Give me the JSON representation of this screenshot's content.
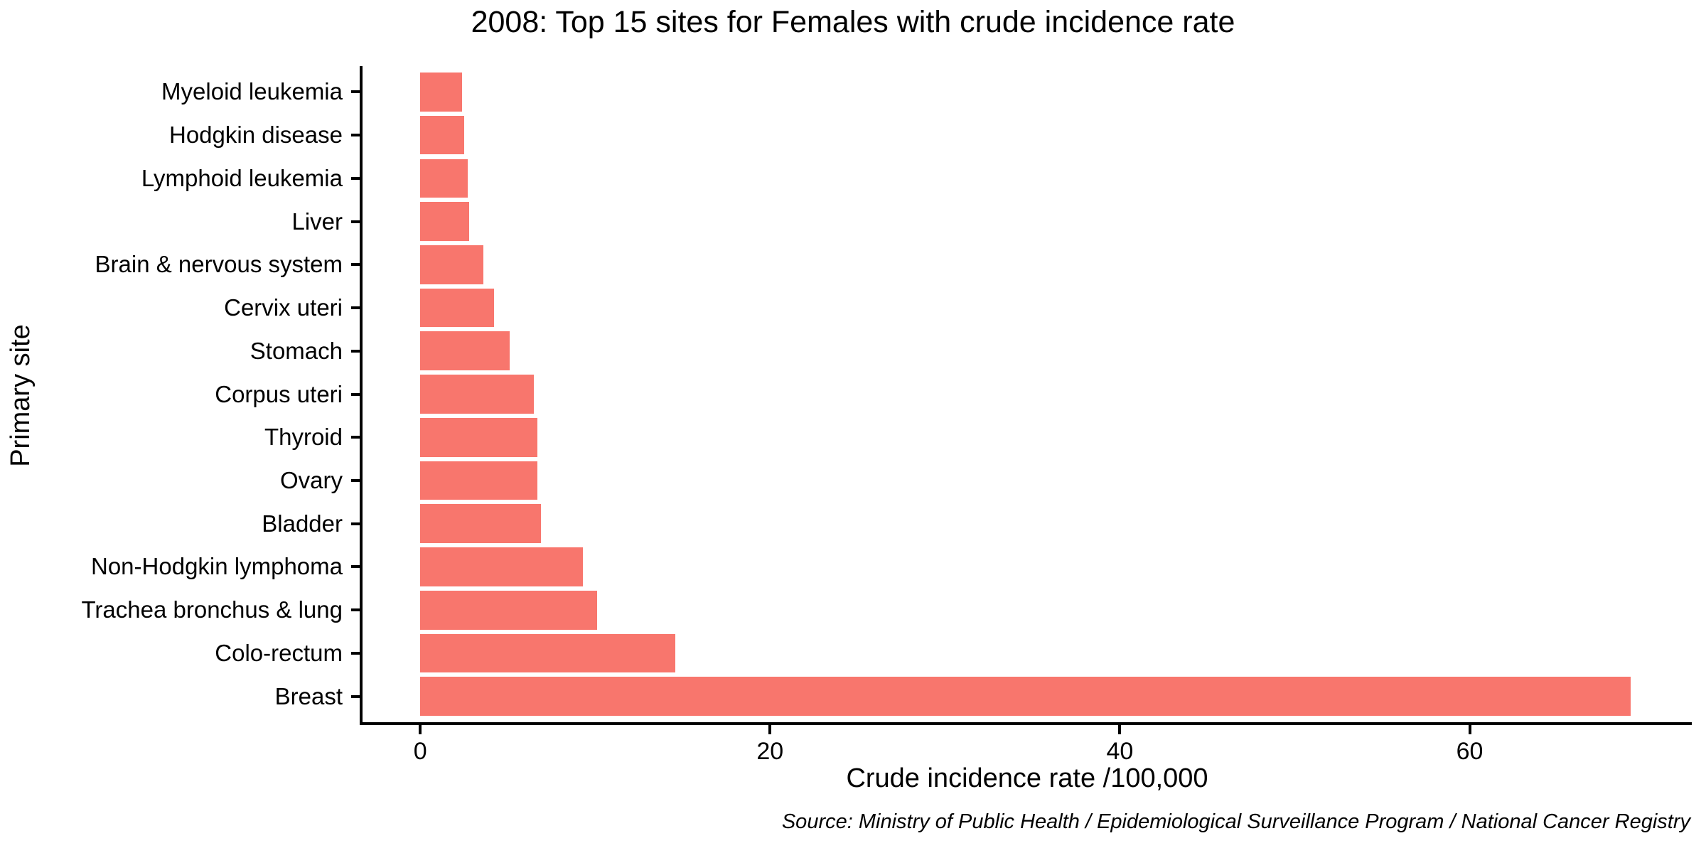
{
  "chart_data": {
    "type": "bar",
    "orientation": "horizontal",
    "title": "2008: Top 15 sites for Females with crude incidence rate",
    "xlabel": "Crude incidence rate /100,000",
    "ylabel": "Primary site",
    "caption": "Source: Ministry of Public Health / Epidemiological Surveillance Program / National Cancer Registry",
    "categories": [
      "Myeloid leukemia",
      "Hodgkin disease",
      "Lymphoid leukemia",
      "Liver",
      "Brain & nervous system",
      "Cervix uteri",
      "Stomach",
      "Corpus uteri",
      "Thyroid",
      "Ovary",
      "Bladder",
      "Non-Hodgkin lymphoma",
      "Trachea bronchus & lung",
      "Colo-rectum",
      "Breast"
    ],
    "values": [
      2.4,
      2.5,
      2.7,
      2.8,
      3.6,
      4.2,
      5.1,
      6.5,
      6.7,
      6.7,
      6.9,
      9.3,
      10.1,
      14.6,
      69.2
    ],
    "x_ticks": [
      0,
      20,
      40,
      60
    ],
    "xlim": [
      -3.3,
      72.7
    ],
    "bar_color": "#F8766D",
    "text_color": "#000000",
    "axis_color": "#000000",
    "grid": false,
    "legend": false
  }
}
